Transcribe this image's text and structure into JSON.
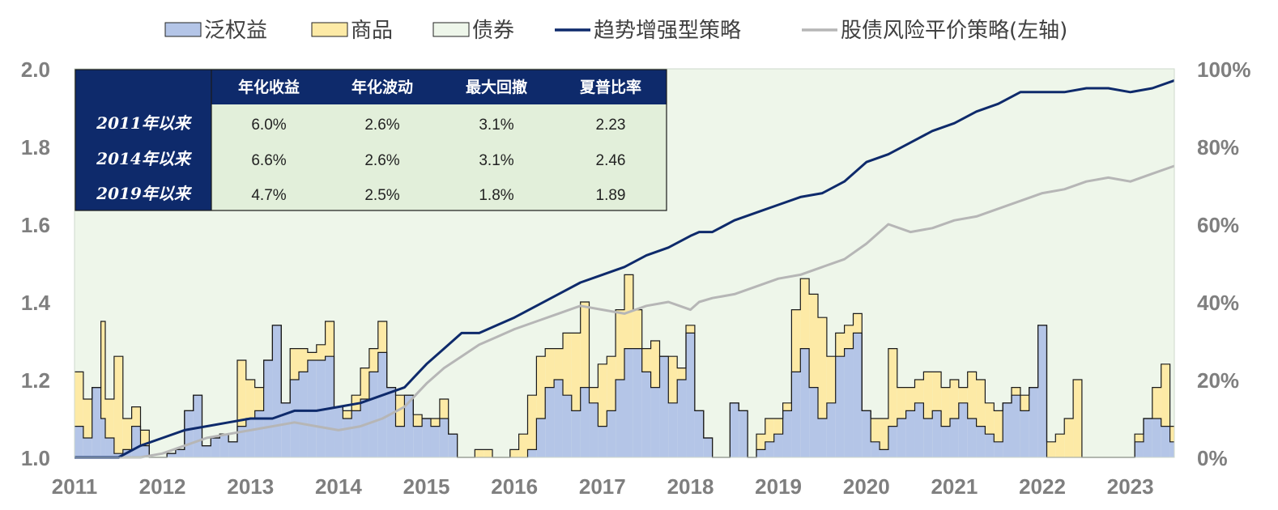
{
  "colors": {
    "equity": "#b4c5e7",
    "commodity": "#fdeaa6",
    "bond": "#eef6ea",
    "trend_line": "#0e2a6b",
    "parity_line": "#b6b6b6",
    "table_header": "#0e2a6b",
    "table_body": "#e2efda",
    "tick_text": "#7f7f7f"
  },
  "chart_data": {
    "type": "area",
    "legend_position": "top",
    "grid": false,
    "legend": [
      {
        "key": "equity",
        "label": "泛权益",
        "kind": "area"
      },
      {
        "key": "commodity",
        "label": "商品",
        "kind": "area"
      },
      {
        "key": "bond",
        "label": "债券",
        "kind": "area"
      },
      {
        "key": "trend",
        "label": "趋势增强型策略",
        "kind": "line"
      },
      {
        "key": "parity",
        "label": "股债风险平价策略(左轴)",
        "kind": "line"
      }
    ],
    "x_ticks": [
      "2011",
      "2012",
      "2013",
      "2014",
      "2015",
      "2016",
      "2017",
      "2018",
      "2019",
      "2020",
      "2021",
      "2022",
      "2023"
    ],
    "x_range": [
      2011.0,
      2023.5
    ],
    "left_axis": {
      "range": [
        1.0,
        2.0
      ],
      "ticks": [
        "1.0",
        "1.2",
        "1.4",
        "1.6",
        "1.8",
        "2.0"
      ]
    },
    "right_axis": {
      "range": [
        0,
        100
      ],
      "ticks": [
        "0%",
        "20%",
        "40%",
        "60%",
        "80%",
        "100%"
      ]
    },
    "allocation_x": [
      2011.0,
      2011.1,
      2011.2,
      2011.3,
      2011.35,
      2011.45,
      2011.55,
      2011.65,
      2011.75,
      2011.85,
      2011.95,
      2012.05,
      2012.15,
      2012.25,
      2012.35,
      2012.45,
      2012.55,
      2012.65,
      2012.75,
      2012.85,
      2012.95,
      2013.05,
      2013.15,
      2013.25,
      2013.35,
      2013.45,
      2013.55,
      2013.65,
      2013.75,
      2013.85,
      2013.95,
      2014.05,
      2014.15,
      2014.25,
      2014.35,
      2014.45,
      2014.55,
      2014.65,
      2014.75,
      2014.85,
      2014.95,
      2015.05,
      2015.15,
      2015.25,
      2015.35,
      2015.45,
      2015.55,
      2015.65,
      2015.75,
      2015.85,
      2015.95,
      2016.05,
      2016.15,
      2016.25,
      2016.35,
      2016.45,
      2016.55,
      2016.65,
      2016.75,
      2016.85,
      2016.95,
      2017.05,
      2017.15,
      2017.25,
      2017.35,
      2017.45,
      2017.55,
      2017.65,
      2017.75,
      2017.85,
      2017.95,
      2018.05,
      2018.15,
      2018.25,
      2018.35,
      2018.45,
      2018.55,
      2018.65,
      2018.75,
      2018.85,
      2018.95,
      2019.05,
      2019.15,
      2019.25,
      2019.35,
      2019.45,
      2019.55,
      2019.65,
      2019.75,
      2019.85,
      2019.95,
      2020.05,
      2020.15,
      2020.25,
      2020.35,
      2020.45,
      2020.55,
      2020.65,
      2020.75,
      2020.85,
      2020.95,
      2021.05,
      2021.15,
      2021.25,
      2021.35,
      2021.45,
      2021.55,
      2021.65,
      2021.75,
      2021.85,
      2021.95,
      2022.05,
      2022.15,
      2022.25,
      2022.35,
      2022.45,
      2022.55,
      2022.65,
      2022.75,
      2022.85,
      2022.95,
      2023.05,
      2023.15,
      2023.25,
      2023.35,
      2023.45
    ],
    "equity_pct": [
      8,
      5,
      18,
      10,
      5,
      1,
      2,
      8,
      3,
      0,
      0,
      1,
      2,
      12,
      16,
      3,
      5,
      6,
      4,
      8,
      10,
      12,
      25,
      34,
      14,
      20,
      22,
      25,
      25,
      26,
      13,
      10,
      12,
      15,
      22,
      27,
      18,
      8,
      16,
      8,
      10,
      8,
      10,
      6,
      0,
      0,
      0,
      0,
      0,
      0,
      0,
      0,
      2,
      10,
      18,
      20,
      16,
      12,
      18,
      14,
      8,
      12,
      20,
      28,
      28,
      22,
      18,
      26,
      14,
      20,
      32,
      12,
      5,
      0,
      0,
      14,
      12,
      0,
      2,
      4,
      6,
      12,
      22,
      28,
      18,
      10,
      14,
      26,
      28,
      32,
      12,
      4,
      2,
      8,
      10,
      12,
      14,
      10,
      12,
      8,
      10,
      14,
      10,
      8,
      6,
      4,
      14,
      16,
      12,
      18,
      34,
      0,
      0,
      0,
      0,
      0,
      0,
      0,
      0,
      0,
      0,
      4,
      10,
      10,
      8,
      4
    ],
    "commodity_pct": [
      14,
      10,
      0,
      25,
      10,
      25,
      8,
      5,
      4,
      0,
      0,
      0,
      0,
      0,
      0,
      0,
      0,
      0,
      0,
      17,
      10,
      6,
      0,
      0,
      0,
      8,
      6,
      2,
      4,
      9,
      0,
      2,
      4,
      8,
      6,
      8,
      0,
      8,
      0,
      3,
      0,
      2,
      5,
      0,
      0,
      0,
      2,
      2,
      0,
      0,
      2,
      6,
      14,
      16,
      10,
      8,
      16,
      20,
      22,
      4,
      16,
      14,
      18,
      19,
      10,
      6,
      12,
      0,
      12,
      3,
      2,
      0,
      0,
      0,
      0,
      0,
      0,
      0,
      4,
      6,
      4,
      2,
      16,
      18,
      24,
      26,
      12,
      6,
      6,
      5,
      0,
      6,
      8,
      20,
      8,
      6,
      6,
      12,
      10,
      10,
      10,
      4,
      12,
      12,
      8,
      8,
      0,
      2,
      4,
      0,
      0,
      4,
      6,
      10,
      20,
      0,
      0,
      0,
      0,
      0,
      0,
      2,
      0,
      8,
      16,
      4
    ],
    "bond_pct_note": "remainder to 100%",
    "series": [
      {
        "name": "趋势增强型策略",
        "axis": "left",
        "x": [
          2011.0,
          2011.25,
          2011.5,
          2011.75,
          2012.0,
          2012.25,
          2012.5,
          2012.75,
          2013.0,
          2013.25,
          2013.5,
          2013.75,
          2014.0,
          2014.25,
          2014.5,
          2014.75,
          2015.0,
          2015.2,
          2015.4,
          2015.6,
          2015.8,
          2016.0,
          2016.25,
          2016.5,
          2016.75,
          2017.0,
          2017.25,
          2017.5,
          2017.75,
          2018.0,
          2018.1,
          2018.25,
          2018.5,
          2018.75,
          2019.0,
          2019.25,
          2019.5,
          2019.75,
          2020.0,
          2020.25,
          2020.5,
          2020.75,
          2021.0,
          2021.25,
          2021.5,
          2021.75,
          2022.0,
          2022.25,
          2022.5,
          2022.75,
          2023.0,
          2023.25,
          2023.5
        ],
        "values": [
          1.0,
          1.0,
          1.0,
          1.03,
          1.05,
          1.07,
          1.08,
          1.09,
          1.1,
          1.1,
          1.12,
          1.12,
          1.13,
          1.14,
          1.16,
          1.18,
          1.24,
          1.28,
          1.32,
          1.32,
          1.34,
          1.36,
          1.39,
          1.42,
          1.45,
          1.47,
          1.49,
          1.52,
          1.54,
          1.57,
          1.58,
          1.58,
          1.61,
          1.63,
          1.65,
          1.67,
          1.68,
          1.71,
          1.76,
          1.78,
          1.81,
          1.84,
          1.86,
          1.89,
          1.91,
          1.94,
          1.94,
          1.94,
          1.95,
          1.95,
          1.94,
          1.95,
          1.97
        ]
      },
      {
        "name": "股债风险平价策略(左轴)",
        "axis": "left",
        "x": [
          2011.0,
          2011.25,
          2011.5,
          2011.75,
          2012.0,
          2012.25,
          2012.5,
          2012.75,
          2013.0,
          2013.25,
          2013.5,
          2013.75,
          2014.0,
          2014.25,
          2014.5,
          2014.75,
          2015.0,
          2015.2,
          2015.4,
          2015.6,
          2015.8,
          2016.0,
          2016.25,
          2016.5,
          2016.75,
          2017.0,
          2017.25,
          2017.5,
          2017.75,
          2018.0,
          2018.1,
          2018.25,
          2018.5,
          2018.75,
          2019.0,
          2019.25,
          2019.5,
          2019.75,
          2020.0,
          2020.25,
          2020.5,
          2020.75,
          2021.0,
          2021.25,
          2021.5,
          2021.75,
          2022.0,
          2022.25,
          2022.5,
          2022.75,
          2023.0,
          2023.25,
          2023.5
        ],
        "values": [
          1.0,
          1.0,
          1.0,
          1.0,
          1.01,
          1.03,
          1.05,
          1.06,
          1.07,
          1.08,
          1.09,
          1.08,
          1.07,
          1.08,
          1.1,
          1.13,
          1.19,
          1.23,
          1.26,
          1.29,
          1.31,
          1.33,
          1.35,
          1.37,
          1.39,
          1.38,
          1.37,
          1.39,
          1.4,
          1.38,
          1.4,
          1.41,
          1.42,
          1.44,
          1.46,
          1.47,
          1.49,
          1.51,
          1.55,
          1.6,
          1.58,
          1.59,
          1.61,
          1.62,
          1.64,
          1.66,
          1.68,
          1.69,
          1.71,
          1.72,
          1.71,
          1.73,
          1.75
        ]
      }
    ]
  },
  "stats_table": {
    "headers": [
      "",
      "年化收益",
      "年化波动",
      "最大回撤",
      "夏普比率"
    ],
    "rows": [
      {
        "label": "2011年以来",
        "cells": [
          "6.0%",
          "2.6%",
          "3.1%",
          "2.23"
        ]
      },
      {
        "label": "2014年以来",
        "cells": [
          "6.6%",
          "2.6%",
          "3.1%",
          "2.46"
        ]
      },
      {
        "label": "2019年以来",
        "cells": [
          "4.7%",
          "2.5%",
          "1.8%",
          "1.89"
        ]
      }
    ]
  }
}
